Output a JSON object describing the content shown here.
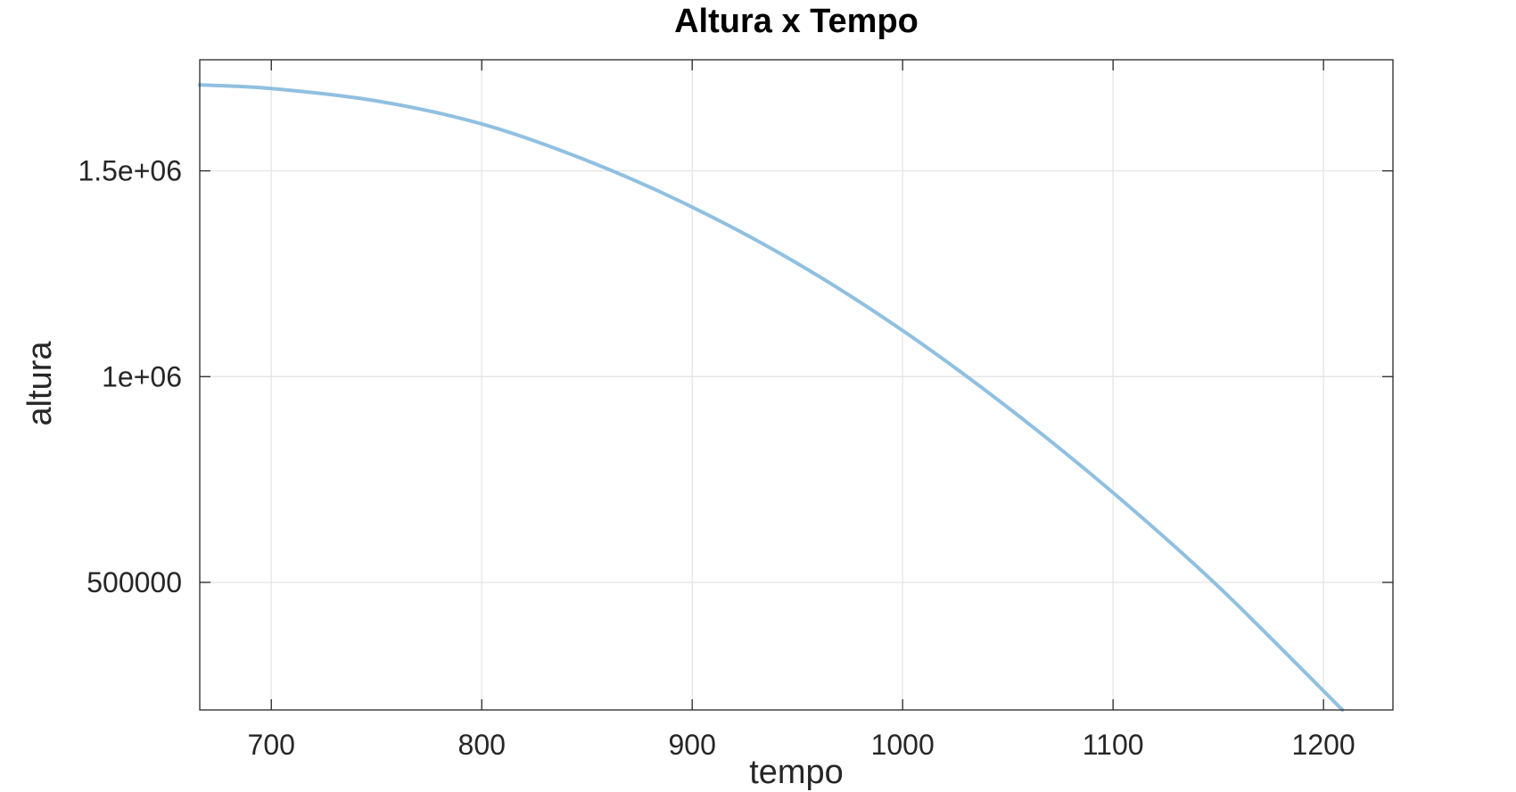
{
  "chart_data": {
    "type": "line",
    "title": "Altura x Tempo",
    "xlabel": "tempo",
    "ylabel": "altura",
    "xlim": [
      666,
      1233
    ],
    "ylim": [
      190000,
      1770000
    ],
    "grid": true,
    "x_ticks": [
      700,
      800,
      900,
      1000,
      1100,
      1200
    ],
    "x_tick_labels": [
      "700",
      "800",
      "900",
      "1000",
      "1100",
      "1200"
    ],
    "y_ticks": [
      500000,
      1000000,
      1500000
    ],
    "y_tick_labels": [
      "500000",
      "1e+06",
      "1.5e+06"
    ],
    "series": [
      {
        "color": "#90c0e0",
        "x": [
          666,
          700,
          750,
          800,
          850,
          900,
          950,
          1000,
          1050,
          1100,
          1150,
          1209
        ],
        "y": [
          1709000,
          1700000,
          1670000,
          1614000,
          1525000,
          1412000,
          1275000,
          1112000,
          925000,
          718000,
          490000,
          190000
        ]
      }
    ]
  }
}
